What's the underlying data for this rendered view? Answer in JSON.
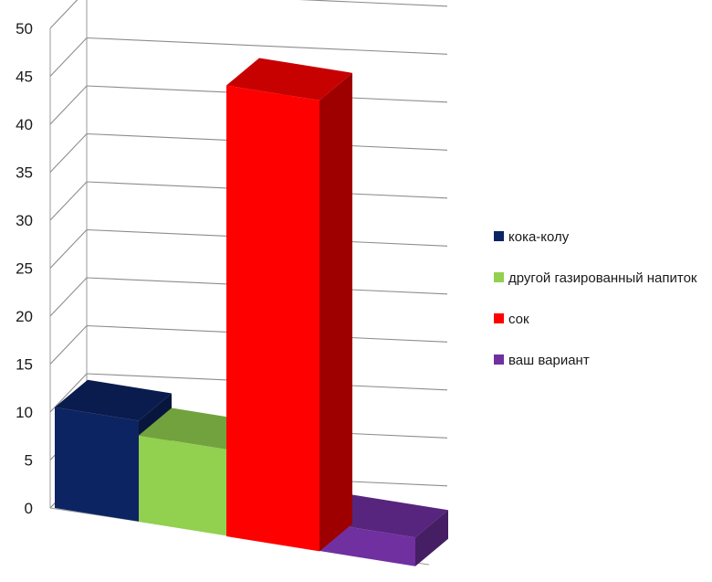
{
  "chart_data": {
    "type": "bar",
    "style": "3d-column",
    "title": "",
    "xlabel": "",
    "ylabel": "",
    "ylim": [
      0,
      50
    ],
    "y_ticks": [
      0,
      5,
      10,
      15,
      20,
      25,
      30,
      35,
      40,
      45,
      50
    ],
    "grid": true,
    "legend_position": "right",
    "series": [
      {
        "name": "кока-колу",
        "value": 10.5,
        "color": "#0d2463"
      },
      {
        "name": "другой газированный напиток",
        "value": 9,
        "color": "#92d050"
      },
      {
        "name": "сок",
        "value": 47,
        "color": "#ff0000"
      },
      {
        "name": "ваш вариант",
        "value": 3,
        "color": "#7030a0"
      }
    ]
  }
}
